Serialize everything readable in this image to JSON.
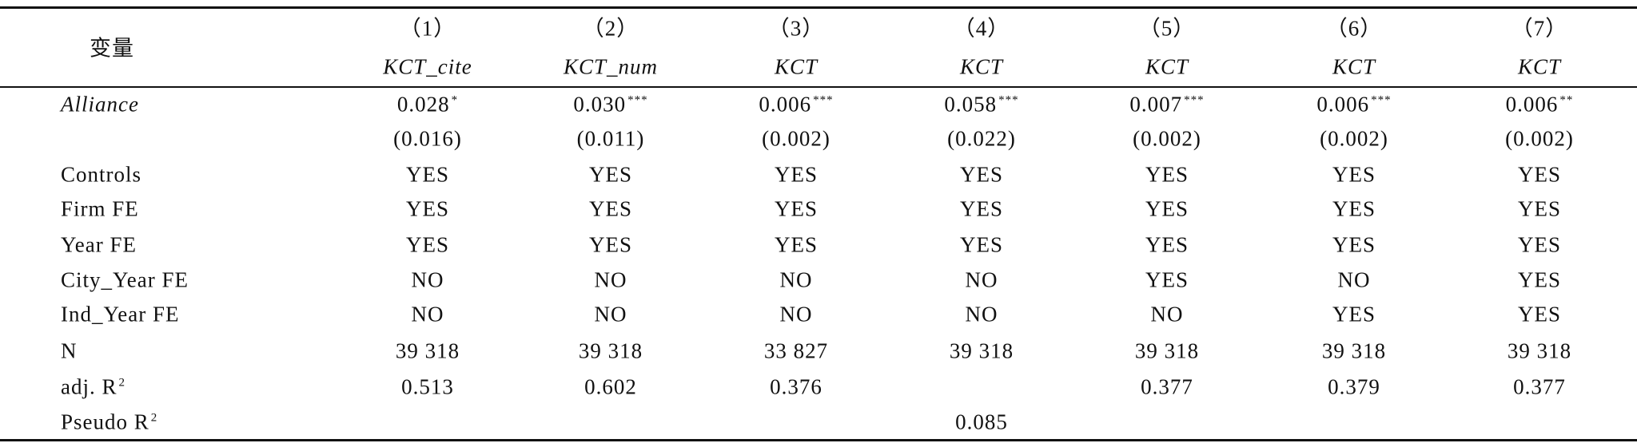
{
  "header": {
    "label": "变量",
    "columns": [
      {
        "number": "（1）",
        "name": "KCT_cite"
      },
      {
        "number": "（2）",
        "name": "KCT_num"
      },
      {
        "number": "（3）",
        "name": "KCT"
      },
      {
        "number": "（4）",
        "name": "KCT"
      },
      {
        "number": "（5）",
        "name": "KCT"
      },
      {
        "number": "（6）",
        "name": "KCT"
      },
      {
        "number": "（7）",
        "name": "KCT"
      }
    ]
  },
  "rows": [
    {
      "label": "Alliance",
      "italic": true,
      "cells": [
        {
          "value": "0.028",
          "stars": "*"
        },
        {
          "value": "0.030",
          "stars": "***"
        },
        {
          "value": "0.006",
          "stars": "***"
        },
        {
          "value": "0.058",
          "stars": "***"
        },
        {
          "value": "0.007",
          "stars": "***"
        },
        {
          "value": "0.006",
          "stars": "***"
        },
        {
          "value": "0.006",
          "stars": "**"
        }
      ]
    },
    {
      "cells": [
        {
          "value": "(0.016)"
        },
        {
          "value": "(0.011)"
        },
        {
          "value": "(0.002)"
        },
        {
          "value": "(0.022)"
        },
        {
          "value": "(0.002)"
        },
        {
          "value": "(0.002)"
        },
        {
          "value": "(0.002)"
        }
      ]
    },
    {
      "label": "Controls",
      "cells": [
        {
          "value": "YES"
        },
        {
          "value": "YES"
        },
        {
          "value": "YES"
        },
        {
          "value": "YES"
        },
        {
          "value": "YES"
        },
        {
          "value": "YES"
        },
        {
          "value": "YES"
        }
      ]
    },
    {
      "label": "Firm FE",
      "cells": [
        {
          "value": "YES"
        },
        {
          "value": "YES"
        },
        {
          "value": "YES"
        },
        {
          "value": "YES"
        },
        {
          "value": "YES"
        },
        {
          "value": "YES"
        },
        {
          "value": "YES"
        }
      ]
    },
    {
      "label": "Year FE",
      "cells": [
        {
          "value": "YES"
        },
        {
          "value": "YES"
        },
        {
          "value": "YES"
        },
        {
          "value": "YES"
        },
        {
          "value": "YES"
        },
        {
          "value": "YES"
        },
        {
          "value": "YES"
        }
      ]
    },
    {
      "label": "City_Year FE",
      "cells": [
        {
          "value": "NO"
        },
        {
          "value": "NO"
        },
        {
          "value": "NO"
        },
        {
          "value": "NO"
        },
        {
          "value": "YES"
        },
        {
          "value": "NO"
        },
        {
          "value": "YES"
        }
      ]
    },
    {
      "label": "Ind_Year FE",
      "cells": [
        {
          "value": "NO"
        },
        {
          "value": "NO"
        },
        {
          "value": "NO"
        },
        {
          "value": "NO"
        },
        {
          "value": "NO"
        },
        {
          "value": "YES"
        },
        {
          "value": "YES"
        }
      ]
    },
    {
      "label": "N",
      "cells": [
        {
          "value": "39 318"
        },
        {
          "value": "39 318"
        },
        {
          "value": "33 827"
        },
        {
          "value": "39 318"
        },
        {
          "value": "39 318"
        },
        {
          "value": "39 318"
        },
        {
          "value": "39 318"
        }
      ]
    },
    {
      "label": "adj. R",
      "label_sup": "2",
      "cells": [
        {
          "value": "0.513"
        },
        {
          "value": "0.602"
        },
        {
          "value": "0.376"
        },
        null,
        {
          "value": "0.377"
        },
        {
          "value": "0.379"
        },
        {
          "value": "0.377"
        }
      ]
    },
    {
      "label": "Pseudo R",
      "label_sup": "2",
      "cells": [
        null,
        null,
        null,
        {
          "value": "0.085"
        },
        null,
        null,
        null
      ]
    }
  ]
}
